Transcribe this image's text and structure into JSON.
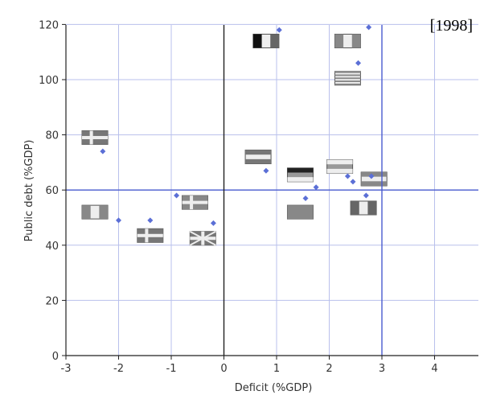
{
  "chart_data": {
    "type": "scatter",
    "title": "",
    "annotation": "[1998]",
    "xlabel": "Deficit (%GDP)",
    "ylabel": "Public debt (%GDP)",
    "xlim": [
      -3,
      5
    ],
    "ylim": [
      0,
      120
    ],
    "x_ticks": [
      "-3",
      "-2",
      "-1",
      "0",
      "1",
      "2",
      "3",
      "4"
    ],
    "y_ticks": [
      "0",
      "20",
      "40",
      "60",
      "80",
      "100",
      "120"
    ],
    "reference_lines": {
      "x": 3,
      "y": 60
    },
    "grid": true,
    "point_color": "#5b6fd6",
    "points": [
      {
        "x": 1.05,
        "y": 118
      },
      {
        "x": 2.75,
        "y": 119
      },
      {
        "x": 2.55,
        "y": 106
      },
      {
        "x": -2.3,
        "y": 74
      },
      {
        "x": 0.8,
        "y": 67
      },
      {
        "x": 2.35,
        "y": 65
      },
      {
        "x": 2.45,
        "y": 63
      },
      {
        "x": 2.8,
        "y": 65
      },
      {
        "x": 1.75,
        "y": 61
      },
      {
        "x": 1.55,
        "y": 57
      },
      {
        "x": 2.7,
        "y": 58
      },
      {
        "x": -0.9,
        "y": 58
      },
      {
        "x": -2.0,
        "y": 49
      },
      {
        "x": -1.4,
        "y": 49
      },
      {
        "x": -0.2,
        "y": 48
      }
    ]
  }
}
